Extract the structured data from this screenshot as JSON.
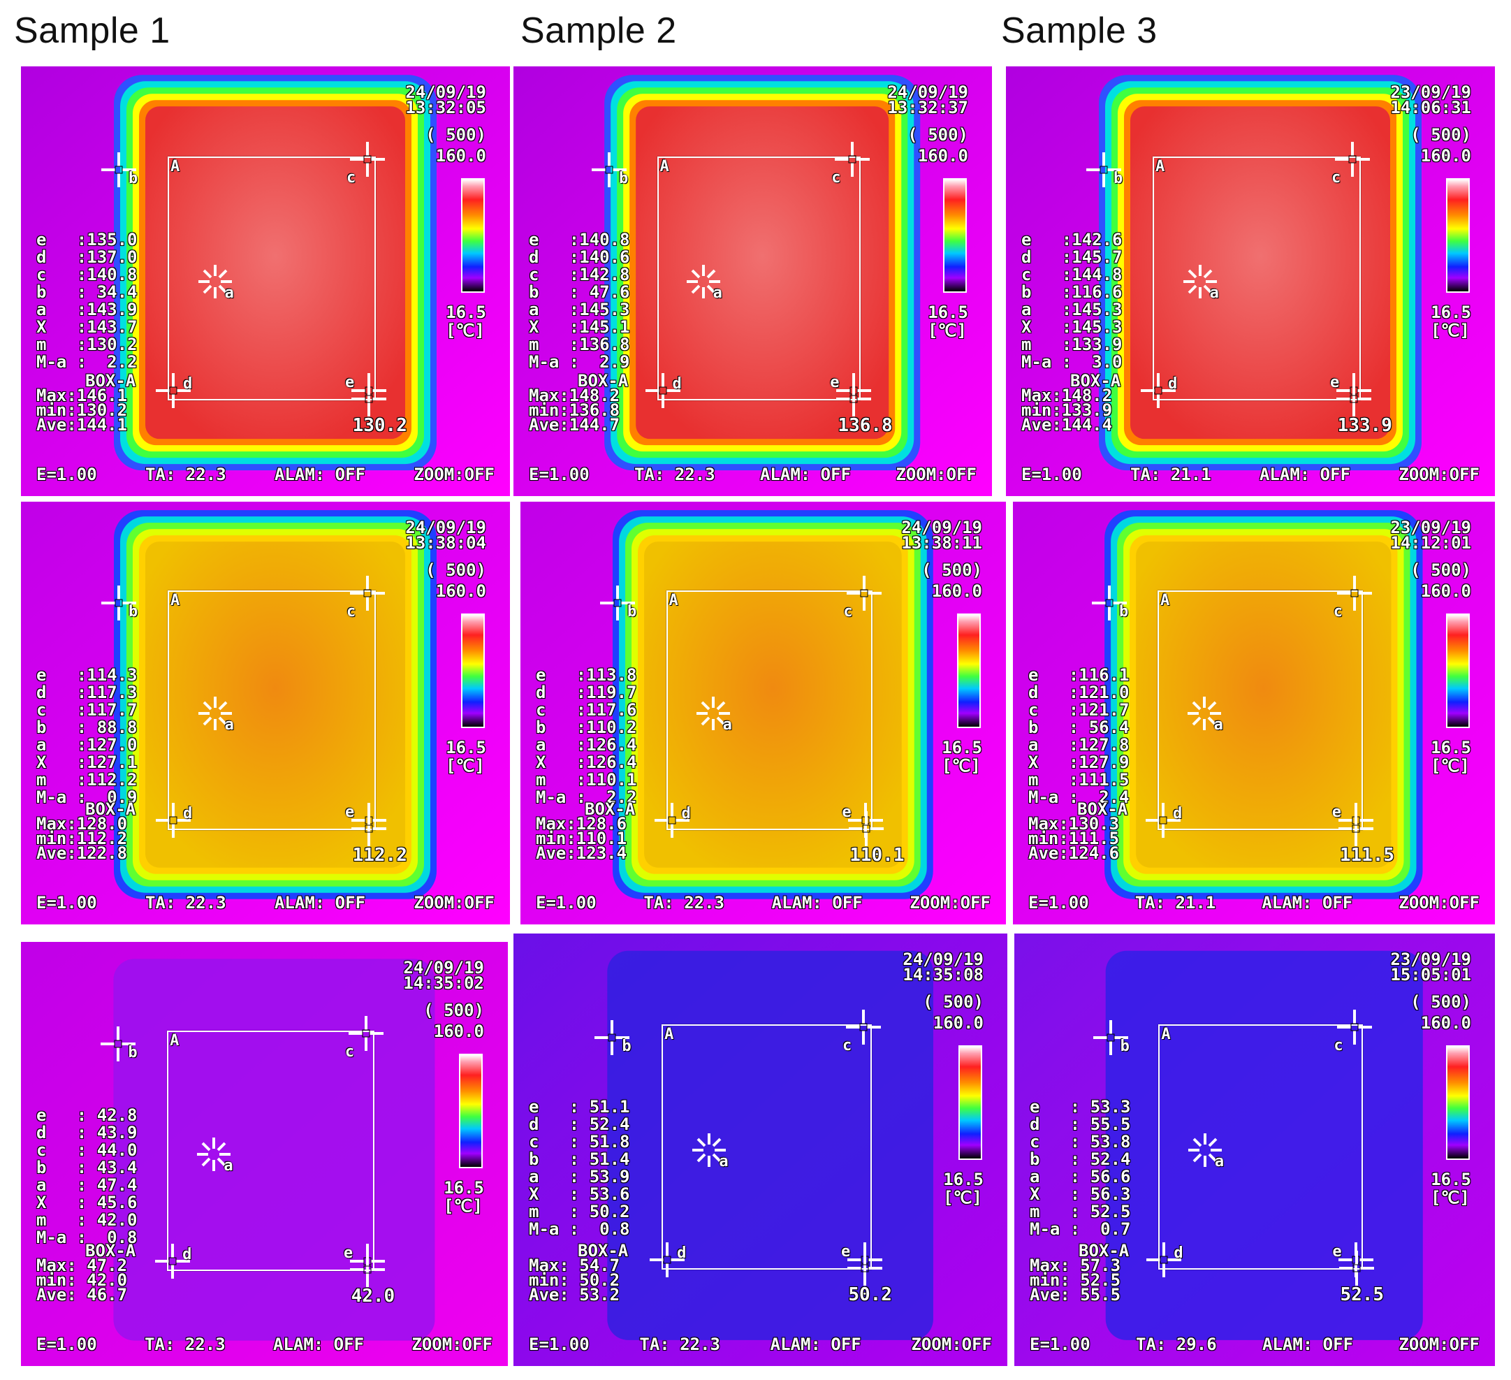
{
  "columns": [
    "Sample 1",
    "Sample 2",
    "Sample 3"
  ],
  "common": {
    "range": "( 500)",
    "scale_max": "160.0",
    "scale_min": "16.5",
    "unit": "[℃]",
    "box_label": "BOX-A",
    "emissivity": "E=1.00",
    "alarm": "ALAM: OFF",
    "zoom": "ZOOM:OFF",
    "roi_label": "A",
    "marker_labels": [
      "a",
      "b",
      "c",
      "d",
      "e"
    ]
  },
  "panels": [
    {
      "date": "24/09/19",
      "time": "13:32:05",
      "e": "135.0",
      "d": "137.0",
      "c": "140.8",
      "b": " 34.4",
      "a": "143.9",
      "X": "143.7",
      "m": "130.2",
      "Ma": "  2.2",
      "max": "146.1",
      "min": "130.2",
      "ave": "144.1",
      "ta": "TA: 22.3",
      "spot": "130.2"
    },
    {
      "date": "24/09/19",
      "time": "13:32:37",
      "e": "140.8",
      "d": "140.6",
      "c": "142.8",
      "b": " 47.6",
      "a": "145.3",
      "X": "145.1",
      "m": "136.8",
      "Ma": "  2.9",
      "max": "148.2",
      "min": "136.8",
      "ave": "144.7",
      "ta": "TA: 22.3",
      "spot": "136.8"
    },
    {
      "date": "23/09/19",
      "time": "14:06:31",
      "e": "142.6",
      "d": "145.7",
      "c": "144.8",
      "b": "116.6",
      "a": "145.3",
      "X": "145.3",
      "m": "133.9",
      "Ma": "  3.0",
      "max": "148.2",
      "min": "133.9",
      "ave": "144.4",
      "ta": "TA: 21.1",
      "spot": "133.9"
    },
    {
      "date": "24/09/19",
      "time": "13:38:04",
      "e": "114.3",
      "d": "117.3",
      "c": "117.7",
      "b": " 88.8",
      "a": "127.0",
      "X": "127.1",
      "m": "112.2",
      "Ma": "  0.9",
      "max": "128.0",
      "min": "112.2",
      "ave": "122.8",
      "ta": "TA: 22.3",
      "spot": "112.2"
    },
    {
      "date": "24/09/19",
      "time": "13:38:11",
      "e": "113.8",
      "d": "119.7",
      "c": "117.6",
      "b": "110.2",
      "a": "126.4",
      "X": "126.4",
      "m": "110.1",
      "Ma": "  2.2",
      "max": "128.6",
      "min": "110.1",
      "ave": "123.4",
      "ta": "TA: 22.3",
      "spot": "110.1"
    },
    {
      "date": "23/09/19",
      "time": "14:12:01",
      "e": "116.1",
      "d": "121.0",
      "c": "121.7",
      "b": " 56.4",
      "a": "127.8",
      "X": "127.9",
      "m": "111.5",
      "Ma": "  2.4",
      "max": "130.3",
      "min": "111.5",
      "ave": "124.6",
      "ta": "TA: 21.1",
      "spot": "111.5"
    },
    {
      "date": "24/09/19",
      "time": "14:35:02",
      "e": " 42.8",
      "d": " 43.9",
      "c": " 44.0",
      "b": " 43.4",
      "a": " 47.4",
      "X": " 45.6",
      "m": " 42.0",
      "Ma": "  0.8",
      "max": " 47.2",
      "min": " 42.0",
      "ave": " 46.7",
      "ta": "TA: 22.3",
      "spot": "42.0"
    },
    {
      "date": "24/09/19",
      "time": "14:35:08",
      "e": " 51.1",
      "d": " 52.4",
      "c": " 51.8",
      "b": " 51.4",
      "a": " 53.9",
      "X": " 53.6",
      "m": " 50.2",
      "Ma": "  0.8",
      "max": " 54.7",
      "min": " 50.2",
      "ave": " 53.2",
      "ta": "TA: 22.3",
      "spot": "50.2"
    },
    {
      "date": "23/09/19",
      "time": "15:05:01",
      "e": " 53.3",
      "d": " 55.5",
      "c": " 53.8",
      "b": " 52.4",
      "a": " 56.6",
      "X": " 56.3",
      "m": " 52.5",
      "Ma": "  0.7",
      "max": " 57.3",
      "min": " 52.5",
      "ave": " 55.5",
      "ta": "TA: 29.6",
      "spot": "52.5"
    }
  ]
}
